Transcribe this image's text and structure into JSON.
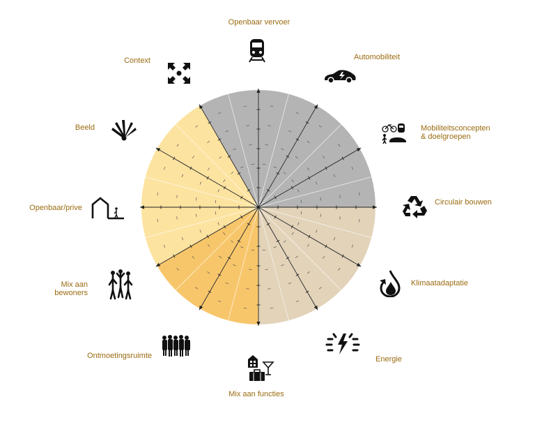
{
  "colors": {
    "label": "#9a6b10",
    "mobility": "#b4b4b4",
    "sustainability": "#e2d3b9",
    "social_dark": "#f8c66a",
    "social_light": "#fde3a0",
    "lines": "#222222"
  },
  "axes": [
    {
      "label": "Openbaar vervoer",
      "icon": "train-icon"
    },
    {
      "label": "Automobiliteit",
      "icon": "electric-car-icon"
    },
    {
      "label": "Mobiliteitsconcepten\n& doelgroepen",
      "icon": "mobility-concepts-icon"
    },
    {
      "label": "Circulair bouwen",
      "icon": "recycle-icon"
    },
    {
      "label": "Klimaatadaptatie",
      "icon": "water-drop-icon"
    },
    {
      "label": "Energie",
      "icon": "energy-bolt-icon"
    },
    {
      "label": "Mix aan functies",
      "icon": "mixed-functions-icon"
    },
    {
      "label": "Ontmoetingsruimte",
      "icon": "people-group-icon"
    },
    {
      "label": "Mix aan\nbewoners",
      "icon": "residents-icon"
    },
    {
      "label": "Openbaar/prive",
      "icon": "public-private-icon"
    },
    {
      "label": "Beeld",
      "icon": "image-fan-icon"
    },
    {
      "label": "Context",
      "icon": "context-arrows-icon"
    }
  ]
}
